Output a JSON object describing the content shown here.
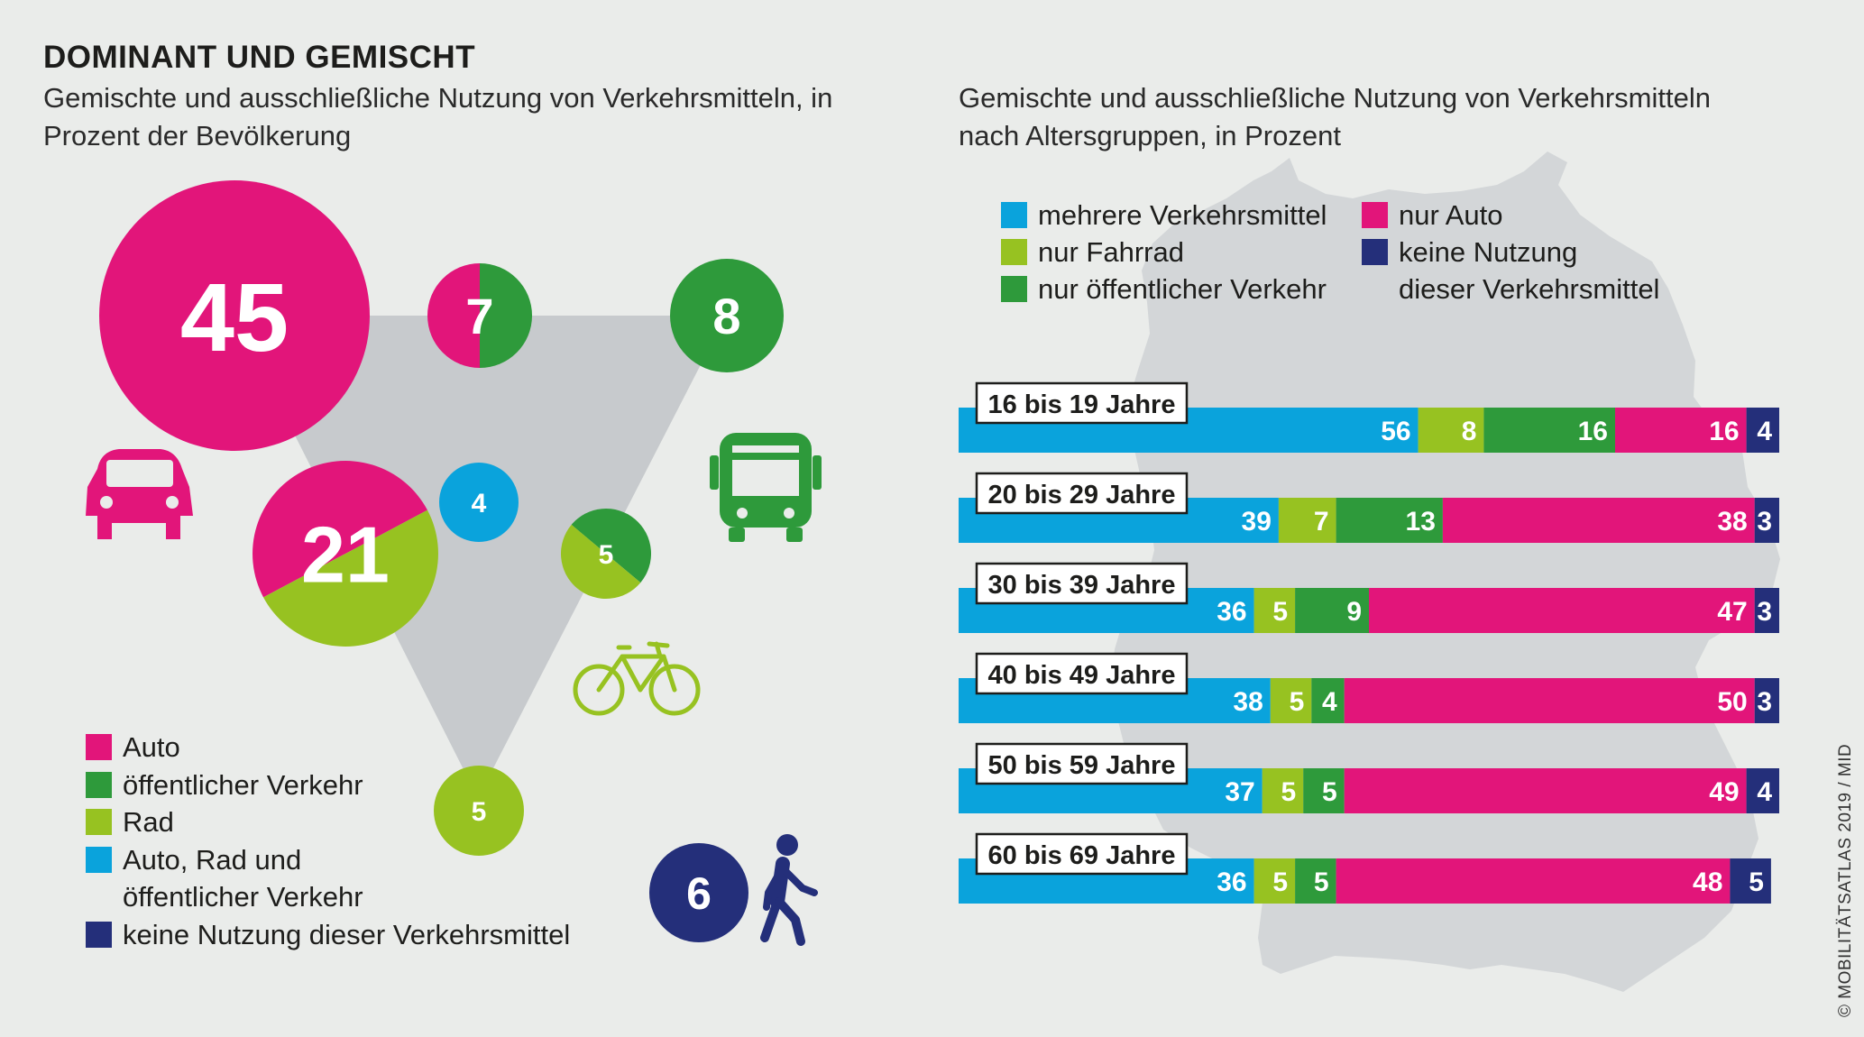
{
  "title": "DOMINANT UND GEMISCHT",
  "left_subtitle": "Gemischte und ausschließliche Nutzung von Verkehrsmitteln, in Prozent der Bevölkerung",
  "right_subtitle": "Gemischte und ausschließliche Nutzung von Verkehrsmitteln nach Altersgruppen, in Prozent",
  "colors": {
    "auto": "#e2157a",
    "oev": "#2e9a3b",
    "rad": "#97c221",
    "mehrere": "#0aa3dc",
    "keine": "#242f7a",
    "triangle": "#c7cacd",
    "map": "#d3d6d8"
  },
  "left_legend": [
    {
      "label": "Auto",
      "color": "#e2157a"
    },
    {
      "label": "öffentlicher Verkehr",
      "color": "#2e9a3b"
    },
    {
      "label": "Rad",
      "color": "#97c221"
    },
    {
      "label": "Auto, Rad und öffentlicher Verkehr",
      "color": "#0aa3dc"
    },
    {
      "label": "keine Nutzung dieser Verkehrsmittel",
      "color": "#242f7a"
    }
  ],
  "right_legend": [
    {
      "label": "mehrere Verkehrsmittel",
      "color": "#0aa3dc"
    },
    {
      "label": "nur Fahrrad",
      "color": "#97c221"
    },
    {
      "label": "nur öffentlicher Verkehr",
      "color": "#2e9a3b"
    },
    {
      "label": "nur Auto",
      "color": "#e2157a"
    },
    {
      "label": "keine Nutzung dieser Verkehrsmittel",
      "color": "#242f7a"
    }
  ],
  "icons": [
    "car-icon",
    "bus-icon",
    "bicycle-icon",
    "pedestrian-icon"
  ],
  "credit": "© MOBILITÄTSATLAS 2019 / MID",
  "chart_data": [
    {
      "type": "bubble",
      "bubbles": [
        {
          "label": "45",
          "value": 45,
          "segments": [
            "Auto"
          ]
        },
        {
          "label": "7",
          "value": 7,
          "segments": [
            "Auto",
            "öffentlicher Verkehr"
          ]
        },
        {
          "label": "8",
          "value": 8,
          "segments": [
            "öffentlicher Verkehr"
          ]
        },
        {
          "label": "21",
          "value": 21,
          "segments": [
            "Auto",
            "Rad"
          ]
        },
        {
          "label": "4",
          "value": 4,
          "segments": [
            "Auto, Rad und öffentlicher Verkehr"
          ]
        },
        {
          "label": "5",
          "value": 5,
          "segments": [
            "öffentlicher Verkehr",
            "Rad"
          ]
        },
        {
          "label": "5",
          "value": 5,
          "segments": [
            "Rad"
          ]
        },
        {
          "label": "6",
          "value": 6,
          "segments": [
            "keine Nutzung dieser Verkehrsmittel"
          ]
        }
      ]
    },
    {
      "type": "bar",
      "stacked": true,
      "orientation": "horizontal",
      "categories": [
        "16 bis 19 Jahre",
        "20 bis 29 Jahre",
        "30 bis 39 Jahre",
        "40 bis 49 Jahre",
        "50 bis 59 Jahre",
        "60 bis 69 Jahre"
      ],
      "series": [
        {
          "name": "mehrere Verkehrsmittel",
          "values": [
            56,
            39,
            36,
            38,
            37,
            36
          ]
        },
        {
          "name": "nur Fahrrad",
          "values": [
            8,
            7,
            5,
            5,
            5,
            5
          ]
        },
        {
          "name": "nur öffentlicher Verkehr",
          "values": [
            16,
            13,
            9,
            4,
            5,
            5
          ]
        },
        {
          "name": "nur Auto",
          "values": [
            16,
            38,
            47,
            50,
            49,
            48
          ]
        },
        {
          "name": "keine Nutzung dieser Verkehrsmittel",
          "values": [
            4,
            3,
            3,
            3,
            4,
            5
          ]
        }
      ]
    }
  ]
}
